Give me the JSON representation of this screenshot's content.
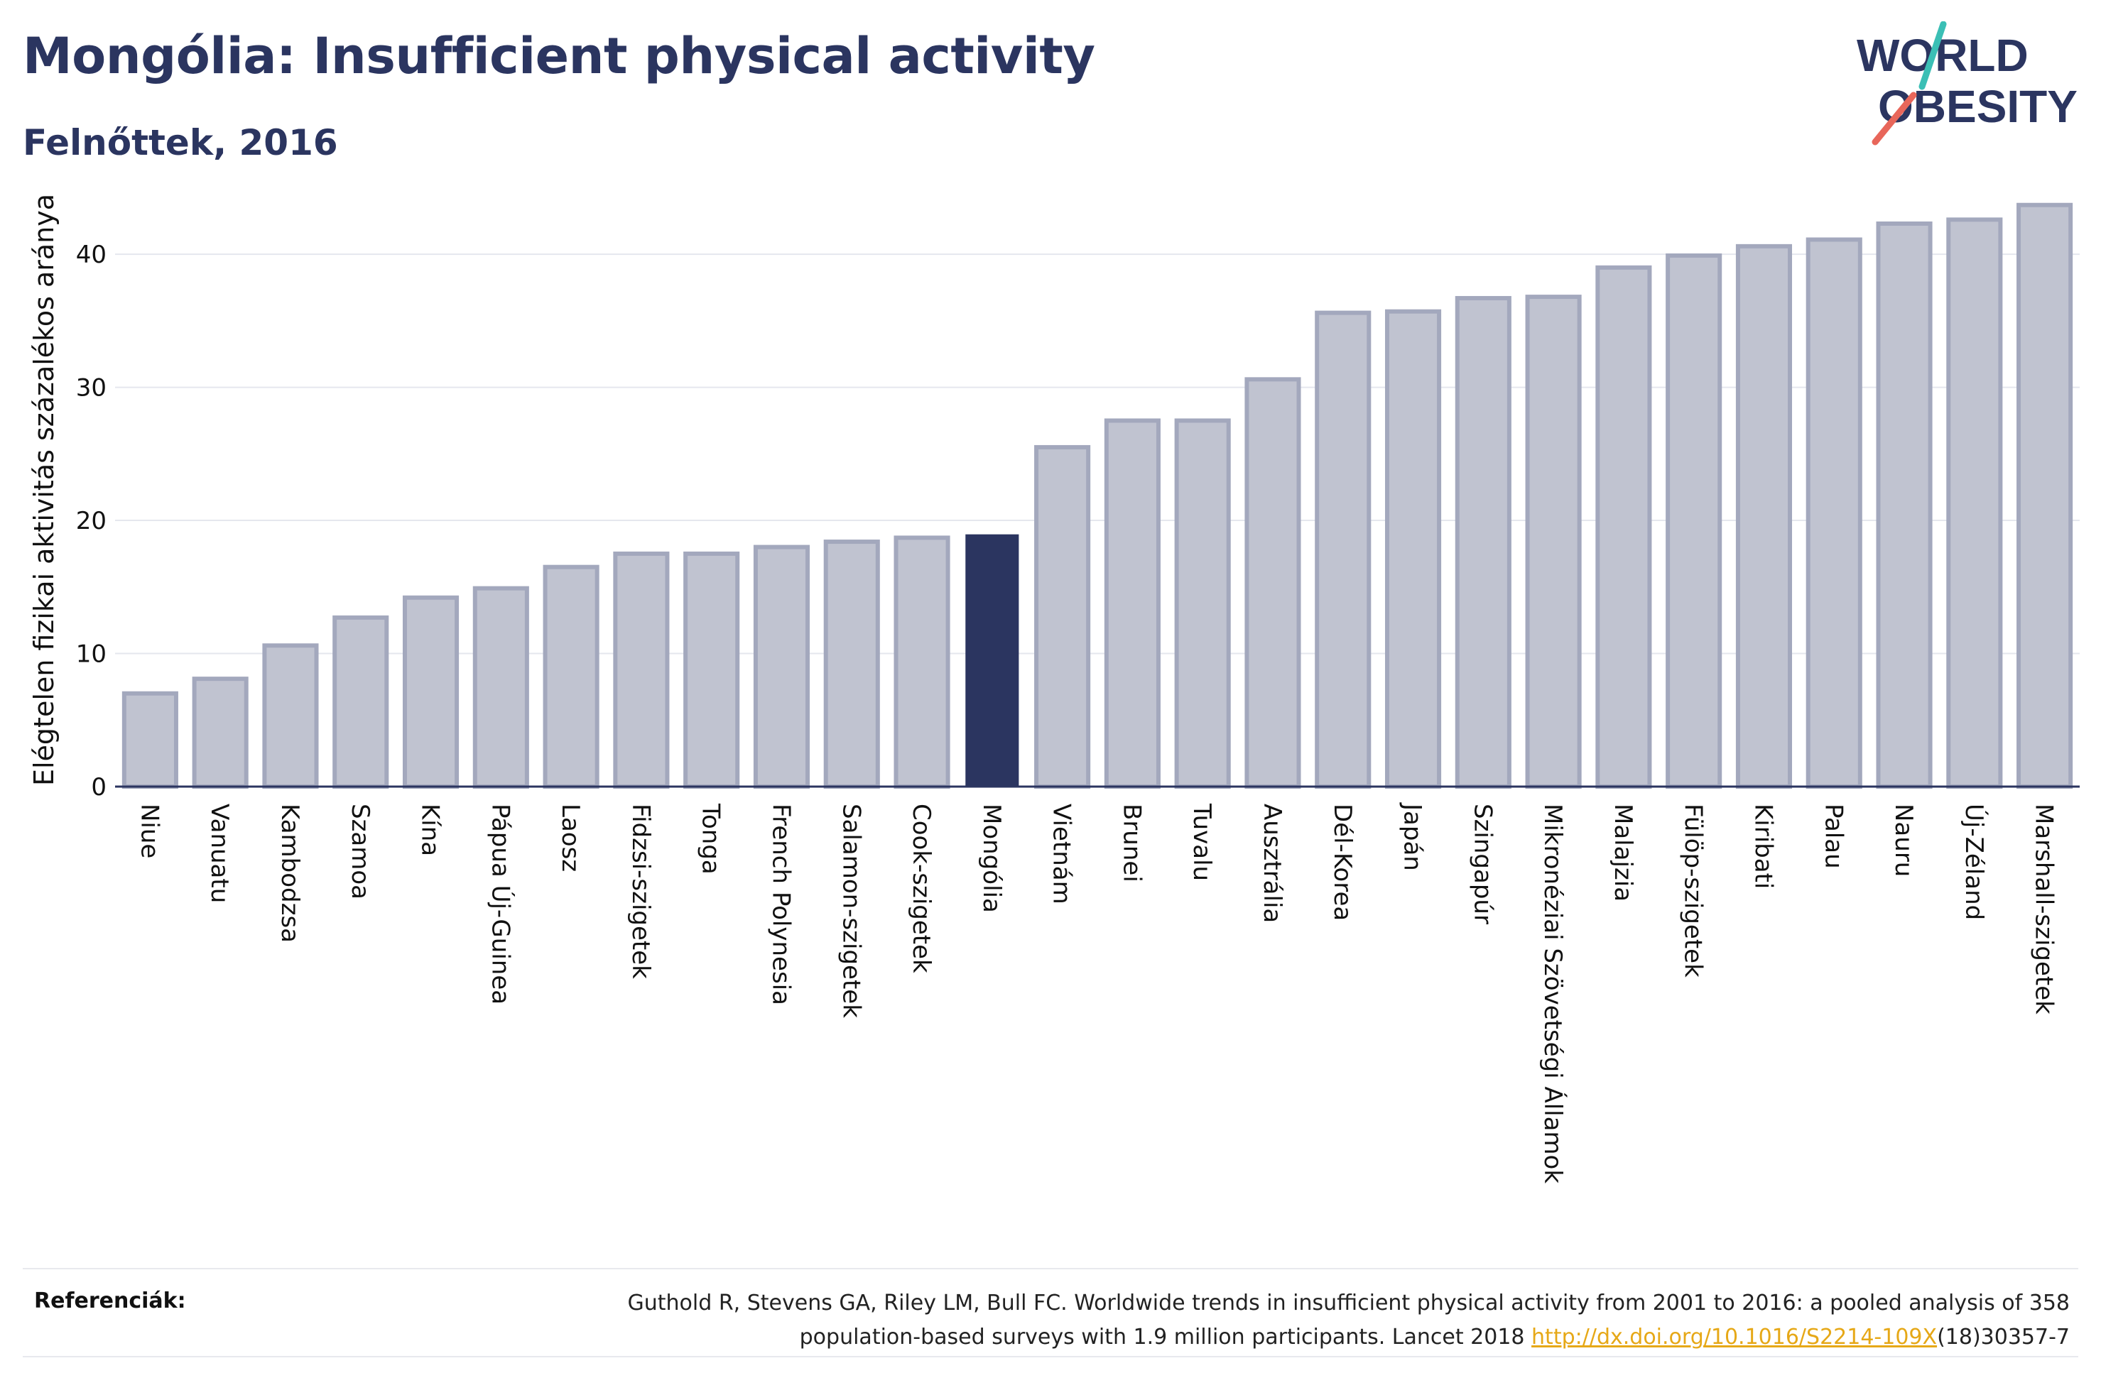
{
  "header": {
    "title": "Mongólia: Insufficient physical activity",
    "subtitle": "Felnőttek, 2016"
  },
  "logo": {
    "line1": "WORLD",
    "line2": "OBESITY",
    "navy": "#2b3560",
    "accent_teal": "#3bbfb5",
    "accent_red": "#e8665a"
  },
  "colors": {
    "bar": "#c0c3d0",
    "bar_border": "#a3a8bd",
    "highlight": "#2b3560",
    "axis": "#2b3560",
    "grid": "#e5e7ee"
  },
  "chart_data": {
    "type": "bar",
    "title": "Mongólia: Insufficient physical activity",
    "subtitle": "Felnőttek, 2016",
    "xlabel": "",
    "ylabel": "Elégtelen fizikai aktivitás százalékos aránya",
    "ylim": [
      0,
      45.5
    ],
    "yticks": [
      0,
      10,
      20,
      30,
      40
    ],
    "grid": true,
    "highlight": "Mongólia",
    "categories": [
      "Niue",
      "Vanuatu",
      "Kambodzsa",
      "Szamoa",
      "Kína",
      "Pápua Új-Guinea",
      "Laosz",
      "Fidzsi-szigetek",
      "Tonga",
      "French Polynesia",
      "Salamon-szigetek",
      "Cook-szigetek",
      "Mongólia",
      "Vietnám",
      "Brunei",
      "Tuvalu",
      "Ausztrália",
      "Dél-Korea",
      "Japán",
      "Szingapúr",
      "Mikronéziai Szövetségi Államok",
      "Malajzia",
      "Fülöp-szigetek",
      "Kiribati",
      "Palau",
      "Nauru",
      "Új-Zéland",
      "Marshall-szigetek"
    ],
    "values": [
      7.0,
      8.1,
      10.6,
      12.7,
      14.2,
      14.9,
      16.5,
      17.5,
      17.5,
      18.0,
      18.4,
      18.7,
      18.9,
      25.5,
      27.5,
      27.5,
      30.6,
      35.6,
      35.7,
      36.7,
      36.8,
      39.0,
      39.9,
      40.6,
      41.1,
      42.3,
      42.6,
      43.7
    ]
  },
  "footer": {
    "ref_label": "Referenciák:",
    "ref_line1": "Guthold R, Stevens GA, Riley LM, Bull FC. Worldwide trends in insufficient physical activity from 2001 to 2016: a pooled analysis of 358",
    "ref_line2_pre": "population-based surveys with 1.9 million participants. Lancet 2018 ",
    "ref_link": "http://dx.doi.org/10.1016/S2214-109X",
    "ref_line2_post": "(18)30357-7"
  }
}
